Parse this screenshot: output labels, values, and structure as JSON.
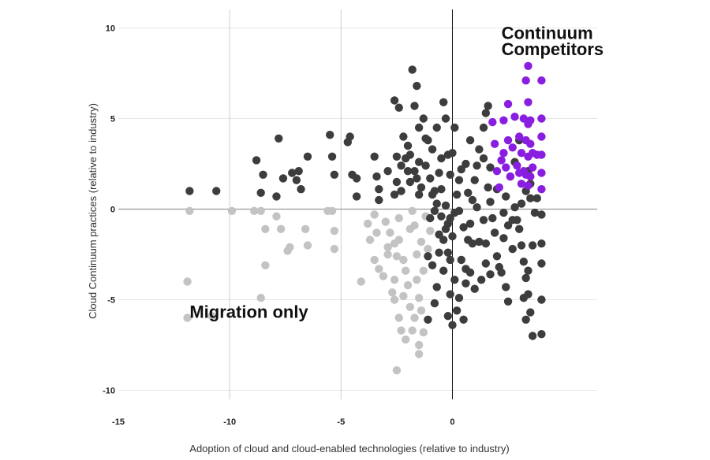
{
  "chart_data": {
    "type": "scatter",
    "title": "",
    "xlabel": "Adoption of cloud and cloud-enabled technologies (relative to industry)",
    "ylabel": "Cloud Continuum practices (relative to industry)",
    "xlim": [
      -15,
      6.5
    ],
    "ylim": [
      -10.5,
      10.5
    ],
    "x_ticks": [
      -15,
      -10,
      -5,
      0
    ],
    "y_ticks": [
      10,
      5,
      0,
      -5,
      -10
    ],
    "grid": true,
    "annotations": [
      {
        "text": "Continuum",
        "x": 2.2,
        "y": 9.4
      },
      {
        "text": "Competitors",
        "x": 2.2,
        "y": 8.5
      },
      {
        "text": "Migration only",
        "x": -11.8,
        "y": -6.0
      }
    ],
    "series": [
      {
        "color": "#c3c3c3",
        "points": [
          [
            -11.8,
            -0.1
          ],
          [
            -11.9,
            -4
          ],
          [
            -11.9,
            -6
          ],
          [
            -10.8,
            -5.9
          ],
          [
            -9.9,
            -0.1
          ],
          [
            -8.9,
            -0.1
          ],
          [
            -8.6,
            -0.1
          ],
          [
            -8.6,
            -4.9
          ],
          [
            -8.4,
            -3.1
          ],
          [
            -8.4,
            -1.1
          ],
          [
            -7.9,
            -0.4
          ],
          [
            -7.7,
            -1.1
          ],
          [
            -7.4,
            -2.3
          ],
          [
            -7.3,
            -2.1
          ],
          [
            -6.6,
            -1.1
          ],
          [
            -6.5,
            -2
          ],
          [
            -5.6,
            -0.1
          ],
          [
            -5.4,
            -0.1
          ],
          [
            -5.3,
            -2.2
          ],
          [
            -5.3,
            -1.2
          ],
          [
            -3.8,
            -0.8
          ],
          [
            -3.7,
            -1.7
          ],
          [
            -3.5,
            -0.3
          ],
          [
            -3.4,
            -1.3
          ],
          [
            -3.5,
            -2.8
          ],
          [
            -3.3,
            -3.3
          ],
          [
            -3,
            -0.7
          ],
          [
            -2.9,
            -2.1
          ],
          [
            -2.8,
            -1.3
          ],
          [
            -2.6,
            -1.9
          ],
          [
            -2.5,
            -2.6
          ],
          [
            -2.4,
            -1.7
          ],
          [
            -2.4,
            -0.5
          ],
          [
            -2.2,
            -2.8
          ],
          [
            -2.1,
            -3.4
          ],
          [
            -2,
            -4.2
          ],
          [
            -1.9,
            -1.1
          ],
          [
            -1.8,
            -0.1
          ],
          [
            -1.7,
            -0.9
          ],
          [
            -1.6,
            -2.5
          ],
          [
            -1.6,
            -3.9
          ],
          [
            -1.5,
            -4.9
          ],
          [
            -1.4,
            -1.8
          ],
          [
            -1.3,
            -3.4
          ],
          [
            -1.2,
            -0.4
          ],
          [
            -1.1,
            -2.2
          ],
          [
            -1.0,
            -1.2
          ],
          [
            -2.3,
            -6.7
          ],
          [
            -2.1,
            -7.2
          ],
          [
            -1.8,
            -6.7
          ],
          [
            -1.7,
            -6.0
          ],
          [
            -1.5,
            -7.5
          ],
          [
            -1.3,
            -6.8
          ],
          [
            -1.9,
            -5.4
          ],
          [
            -2.6,
            -5.0
          ],
          [
            -2.4,
            -6.0
          ],
          [
            -2.7,
            -4.6
          ],
          [
            -2.6,
            -3.9
          ],
          [
            -3.1,
            -3.7
          ],
          [
            -2.9,
            -2.5
          ],
          [
            -4.1,
            -4
          ],
          [
            -2.5,
            -8.9
          ],
          [
            -1.5,
            -8
          ],
          [
            -2.2,
            -4.8
          ],
          [
            -1.4,
            -5.6
          ]
        ]
      },
      {
        "color": "#3d3d3d",
        "points": [
          [
            -11.8,
            1
          ],
          [
            -10.6,
            1
          ],
          [
            -8.8,
            2.7
          ],
          [
            -8.6,
            0.9
          ],
          [
            -8.5,
            1.9
          ],
          [
            -7.8,
            3.9
          ],
          [
            -7.9,
            0.7
          ],
          [
            -7.6,
            1.7
          ],
          [
            -7.2,
            2
          ],
          [
            -7.0,
            1.6
          ],
          [
            -6.9,
            2.1
          ],
          [
            -6.8,
            1.1
          ],
          [
            -6.5,
            2.9
          ],
          [
            -5.5,
            4.1
          ],
          [
            -5.4,
            2.9
          ],
          [
            -5.3,
            1.9
          ],
          [
            -4.7,
            3.7
          ],
          [
            -4.6,
            4
          ],
          [
            -4.5,
            1.9
          ],
          [
            -4.3,
            1.7
          ],
          [
            -4.3,
            0.7
          ],
          [
            -3.5,
            2.9
          ],
          [
            -3.4,
            1.8
          ],
          [
            -3.3,
            1.1
          ],
          [
            -2.6,
            6
          ],
          [
            -2.4,
            5.6
          ],
          [
            -2.2,
            4
          ],
          [
            -2.0,
            3.5
          ],
          [
            -1.9,
            3
          ],
          [
            -1.8,
            7.7
          ],
          [
            -1.6,
            6.8
          ],
          [
            -1.7,
            5.7
          ],
          [
            -1.5,
            4.5
          ],
          [
            -1.3,
            5
          ],
          [
            -1.1,
            3.8
          ],
          [
            -0.9,
            3.3
          ],
          [
            -0.7,
            4.5
          ],
          [
            -0.5,
            2.8
          ],
          [
            -0.4,
            5.9
          ],
          [
            -0.3,
            5.0
          ],
          [
            -0.2,
            3.0
          ],
          [
            -2.5,
            2.9
          ],
          [
            -2.3,
            2.4
          ],
          [
            -2.1,
            2.8
          ],
          [
            -1.9,
            1.5
          ],
          [
            -1.7,
            2.1
          ],
          [
            -1.6,
            1.7
          ],
          [
            -1.4,
            1.2
          ],
          [
            -1.2,
            2.4
          ],
          [
            -1.0,
            1.7
          ],
          [
            -0.8,
            1.0
          ],
          [
            -0.6,
            2.0
          ],
          [
            -0.5,
            1.1
          ],
          [
            -2.5,
            1.5
          ],
          [
            -2.3,
            1.0
          ],
          [
            -2.6,
            0.8
          ],
          [
            -1.5,
            0.8
          ],
          [
            -0.9,
            0.8
          ],
          [
            -0.7,
            0.3
          ],
          [
            -0.5,
            -0.4
          ],
          [
            -0.3,
            -1.1
          ],
          [
            -0.2,
            -2.4
          ],
          [
            -0.1,
            -0.5
          ],
          [
            0,
            -1.5
          ],
          [
            0.1,
            -0.2
          ],
          [
            0.2,
            0.8
          ],
          [
            0.3,
            1.6
          ],
          [
            0.4,
            -2.8
          ],
          [
            0.6,
            -3.3
          ],
          [
            0.7,
            -1.7
          ],
          [
            0.8,
            -0.8
          ],
          [
            0.9,
            0.5
          ],
          [
            1.0,
            1.6
          ],
          [
            1.1,
            2.4
          ],
          [
            1.2,
            3.3
          ],
          [
            1.4,
            4.5
          ],
          [
            1.5,
            5.3
          ],
          [
            1.6,
            1.2
          ],
          [
            1.7,
            0.4
          ],
          [
            1.8,
            -0.5
          ],
          [
            1.9,
            -1.3
          ],
          [
            2.0,
            -2.6
          ],
          [
            2.2,
            -3.5
          ],
          [
            2.4,
            -4.3
          ],
          [
            2.5,
            -5.1
          ],
          [
            2.7,
            -0.6
          ],
          [
            2.8,
            0.1
          ],
          [
            3.0,
            -1.1
          ],
          [
            3.1,
            -2.0
          ],
          [
            3.2,
            -2.9
          ],
          [
            3.3,
            -3.8
          ],
          [
            3.4,
            -4.7
          ],
          [
            3.5,
            -5.7
          ],
          [
            3.6,
            -7.0
          ],
          [
            3.3,
            -6.1
          ],
          [
            3.2,
            -4.9
          ],
          [
            3.4,
            -3.4
          ],
          [
            3.6,
            -2.0
          ],
          [
            3.7,
            -0.2
          ],
          [
            3.8,
            0.6
          ],
          [
            4.0,
            -0.3
          ],
          [
            4.0,
            -1.9
          ],
          [
            4.0,
            -3.0
          ],
          [
            4.0,
            -5.0
          ],
          [
            4.0,
            -6.9
          ],
          [
            0.5,
            -6.1
          ],
          [
            0.2,
            -5.6
          ],
          [
            -0.2,
            -5.9
          ],
          [
            -0.1,
            -4.7
          ],
          [
            0.1,
            -3.9
          ],
          [
            0.3,
            -4.9
          ],
          [
            0.6,
            -4.1
          ],
          [
            0.8,
            -3.5
          ],
          [
            1.0,
            -4.4
          ],
          [
            1.3,
            -3.9
          ],
          [
            1.5,
            -3.0
          ],
          [
            1.7,
            -3.6
          ],
          [
            2.1,
            -3.2
          ],
          [
            2.3,
            -1.6
          ],
          [
            2.5,
            -0.9
          ],
          [
            2.7,
            -2.2
          ],
          [
            0.0,
            -6.4
          ],
          [
            -1.1,
            -6.1
          ],
          [
            -0.8,
            -5.2
          ],
          [
            -0.7,
            -4.3
          ],
          [
            -0.9,
            -3.1
          ],
          [
            -1.1,
            -2.6
          ],
          [
            -0.4,
            -3.4
          ],
          [
            -0.6,
            -2.4
          ],
          [
            -0.4,
            -1.7
          ],
          [
            -0.2,
            -0.8
          ],
          [
            0.5,
            -1.0
          ],
          [
            1.2,
            -1.8
          ],
          [
            1.4,
            -0.6
          ],
          [
            1.1,
            0.1
          ],
          [
            0.7,
            0.9
          ],
          [
            0.4,
            2.2
          ],
          [
            0.0,
            3.1
          ],
          [
            0.1,
            4.5
          ],
          [
            -0.1,
            1.9
          ],
          [
            -1.2,
            3.9
          ],
          [
            -1.5,
            2.6
          ],
          [
            -2.0,
            2.1
          ],
          [
            -2.9,
            2.1
          ],
          [
            -3.3,
            0.5
          ],
          [
            1.4,
            2.8
          ],
          [
            1.7,
            2.3
          ],
          [
            2.0,
            1.1
          ],
          [
            2.4,
            0.7
          ],
          [
            2.6,
            1.8
          ],
          [
            2.8,
            2.6
          ],
          [
            3.0,
            3.8
          ],
          [
            3.3,
            1.0
          ],
          [
            3.5,
            0.6
          ],
          [
            3.5,
            1.4
          ],
          [
            3.4,
            2.1
          ],
          [
            0.8,
            3.8
          ],
          [
            1.6,
            5.7
          ],
          [
            0.6,
            2.5
          ],
          [
            0.3,
            -0.1
          ],
          [
            -0.3,
            0.2
          ],
          [
            -0.8,
            -0.1
          ],
          [
            -1.0,
            -0.5
          ],
          [
            -0.6,
            -1.4
          ],
          [
            -0.1,
            -2.8
          ],
          [
            0.9,
            -1.9
          ],
          [
            1.5,
            -1.9
          ],
          [
            2.3,
            -0.2
          ],
          [
            2.9,
            -0.6
          ],
          [
            3.1,
            0.3
          ]
        ]
      },
      {
        "color": "#8a1ee0",
        "points": [
          [
            1.8,
            4.8
          ],
          [
            1.9,
            3.6
          ],
          [
            2.0,
            2.1
          ],
          [
            2.1,
            1.2
          ],
          [
            2.2,
            2.7
          ],
          [
            2.3,
            4.9
          ],
          [
            2.3,
            3.1
          ],
          [
            2.4,
            2.3
          ],
          [
            2.5,
            5.8
          ],
          [
            2.5,
            3.8
          ],
          [
            2.6,
            1.8
          ],
          [
            2.7,
            3.4
          ],
          [
            2.8,
            5.1
          ],
          [
            2.9,
            2.4
          ],
          [
            3.0,
            4.0
          ],
          [
            3.1,
            3.1
          ],
          [
            3.1,
            1.4
          ],
          [
            3.2,
            5.0
          ],
          [
            3.2,
            2.1
          ],
          [
            3.3,
            3.8
          ],
          [
            3.3,
            7.1
          ],
          [
            3.4,
            5.9
          ],
          [
            3.4,
            4.7
          ],
          [
            3.4,
            2.9
          ],
          [
            3.5,
            1.8
          ],
          [
            3.5,
            3.6
          ],
          [
            3.6,
            2.3
          ],
          [
            3.6,
            3.1
          ],
          [
            3.3,
            1.9
          ],
          [
            3.4,
            7.9
          ],
          [
            3.5,
            4.9
          ],
          [
            3.0,
            2.0
          ],
          [
            3.8,
            3.0
          ],
          [
            4.0,
            1.1
          ],
          [
            4.0,
            2.0
          ],
          [
            4.0,
            3.0
          ],
          [
            4.0,
            4.0
          ],
          [
            4.0,
            5.0
          ],
          [
            4.0,
            7.1
          ],
          [
            3.4,
            1.3
          ]
        ]
      }
    ]
  }
}
